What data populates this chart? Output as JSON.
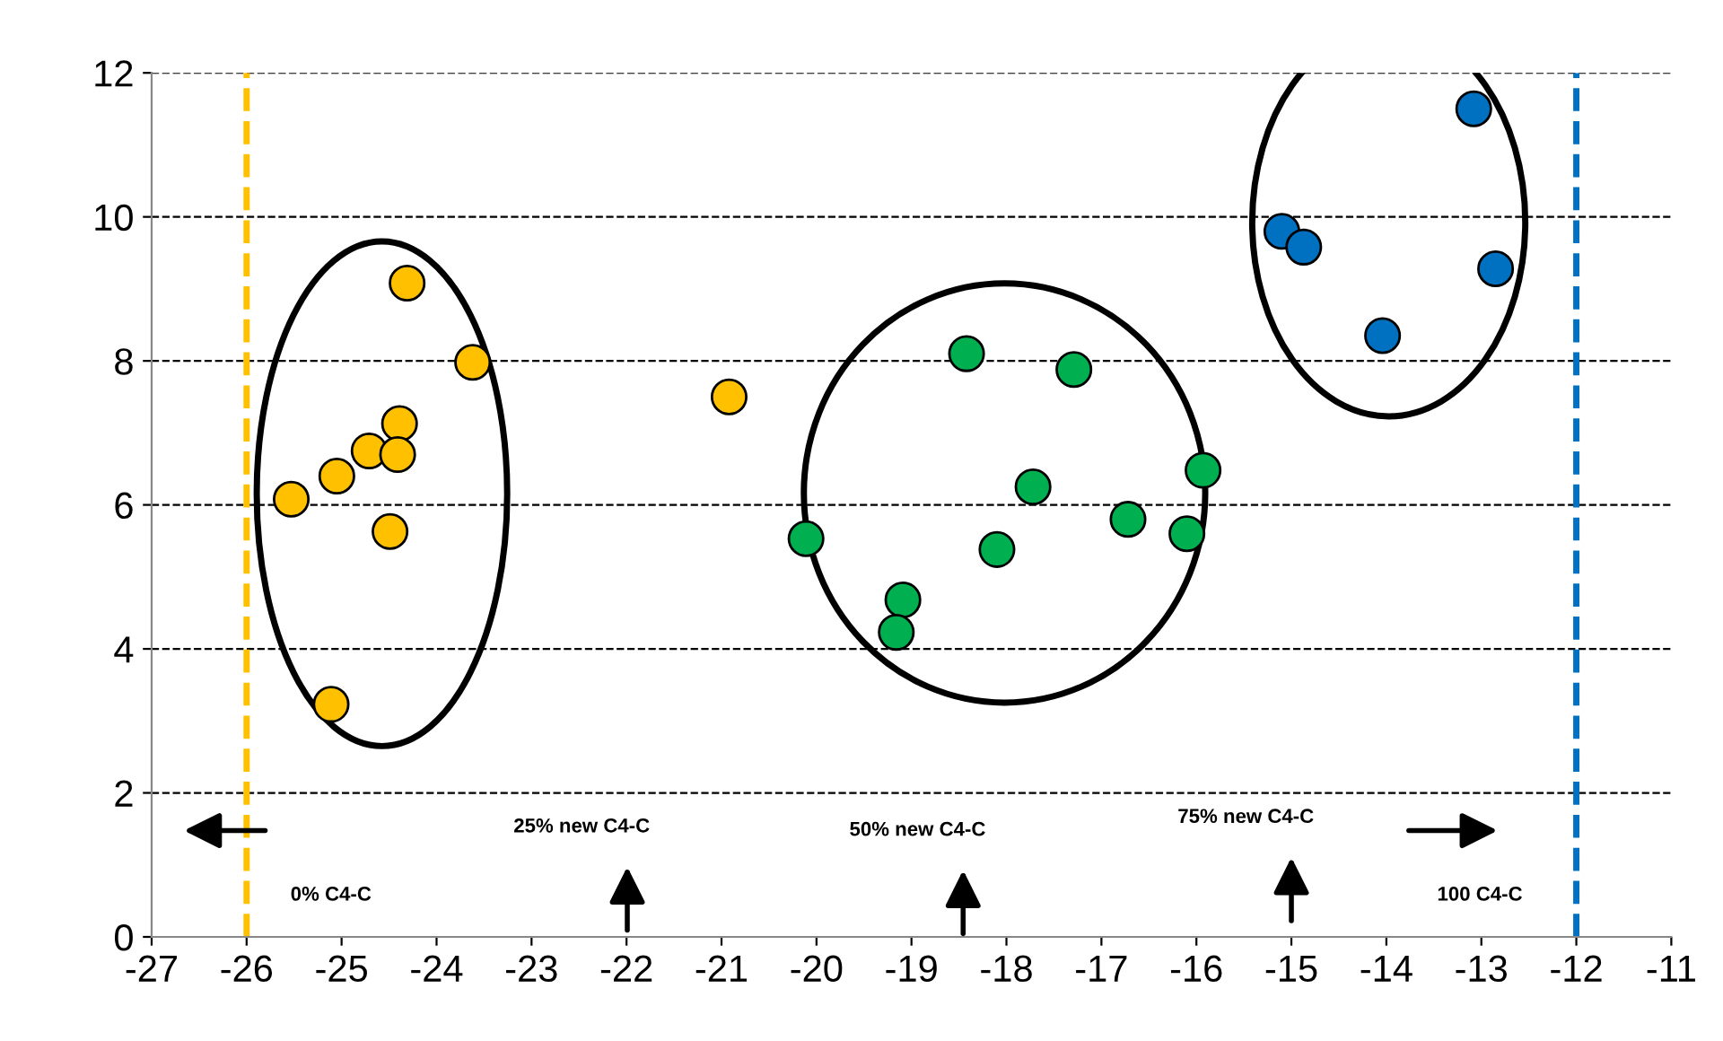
{
  "chart_data": {
    "type": "scatter",
    "xlim": [
      -27,
      -11
    ],
    "xticks": [
      -27,
      -26,
      -25,
      -24,
      -23,
      -22,
      -21,
      -20,
      -19,
      -18,
      -17,
      -16,
      -15,
      -14,
      -13,
      -12,
      -11
    ],
    "ylim": [
      0,
      12
    ],
    "yticks": [
      0,
      2,
      4,
      6,
      8,
      10,
      12
    ],
    "grid": "y",
    "marker": "circle",
    "legend": false,
    "series": [
      {
        "color": "#ffc000",
        "x": [
          -25.53,
          -25.05,
          -24.71,
          -24.39,
          -24.41,
          -24.31,
          -24.49,
          -25.11,
          -23.62
        ],
        "values": [
          6.08,
          6.4,
          6.75,
          7.13,
          6.7,
          9.08,
          5.63,
          3.23,
          7.98
        ]
      },
      {
        "color": "#ffc000",
        "x": [
          -20.92
        ],
        "values": [
          7.5
        ]
      },
      {
        "color": "#00b050",
        "x": [
          -20.11,
          -19.09,
          -19.16,
          -18.42,
          -18.1,
          -17.72,
          -17.29,
          -16.72,
          -16.1,
          -15.93
        ],
        "values": [
          5.53,
          4.68,
          4.23,
          8.1,
          5.38,
          6.25,
          7.88,
          5.8,
          5.6,
          6.48
        ]
      },
      {
        "color": "#0070c0",
        "x": [
          -15.1,
          -14.87,
          -14.04,
          -13.08,
          -12.85
        ],
        "values": [
          9.8,
          9.58,
          8.35,
          11.5,
          9.28
        ]
      }
    ],
    "ref_lines": [
      {
        "axis": "x",
        "value": -26,
        "color": "#ffc000",
        "line_style": "dashed"
      },
      {
        "axis": "x",
        "value": -12,
        "color": "#0070c0",
        "line_style": "dashed"
      }
    ],
    "annotations": [
      "0% C4-C",
      "25% new C4-C",
      "50% new C4-C",
      "75% new C4-C",
      "100 C4-C"
    ]
  }
}
